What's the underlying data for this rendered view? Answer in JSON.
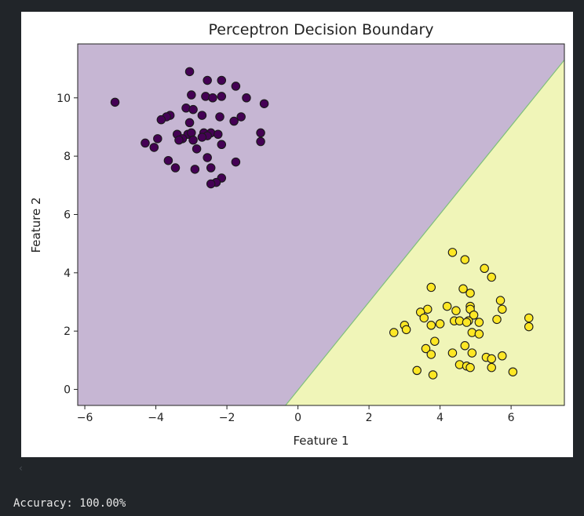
{
  "output": {
    "accuracy_text": "Accuracy: 100.00%",
    "scroll_hint": "‹"
  },
  "chart_data": {
    "type": "scatter",
    "title": "Perceptron Decision Boundary",
    "xlabel": "Feature 1",
    "ylabel": "Feature 2",
    "xlim": [
      -6.2,
      7.5
    ],
    "ylim": [
      -0.55,
      11.85
    ],
    "xticks": [
      -6,
      -4,
      -2,
      0,
      2,
      4,
      6
    ],
    "yticks": [
      0,
      2,
      4,
      6,
      8,
      10
    ],
    "xtick_labels": [
      "−6",
      "−4",
      "−2",
      "0",
      "2",
      "4",
      "6"
    ],
    "ytick_labels": [
      "0",
      "2",
      "4",
      "6",
      "8",
      "10"
    ],
    "decision_boundary": {
      "points": [
        [
          -0.35,
          -0.55
        ],
        [
          7.5,
          11.3
        ]
      ],
      "color": "#7fbf7b"
    },
    "regions": {
      "class0_color": "#c6b6d3",
      "class1_color": "#f0f5b8"
    },
    "series": [
      {
        "class": 0,
        "color": "#440154",
        "points": [
          [
            -5.15,
            9.85
          ],
          [
            -3.05,
            10.9
          ],
          [
            -2.55,
            10.6
          ],
          [
            -2.15,
            10.6
          ],
          [
            -1.75,
            10.4
          ],
          [
            -1.45,
            10.0
          ],
          [
            -3.0,
            10.1
          ],
          [
            -2.6,
            10.05
          ],
          [
            -2.4,
            10.0
          ],
          [
            -2.15,
            10.05
          ],
          [
            -0.95,
            9.8
          ],
          [
            -3.15,
            9.65
          ],
          [
            -2.95,
            9.6
          ],
          [
            -2.2,
            9.35
          ],
          [
            -2.7,
            9.4
          ],
          [
            -3.6,
            9.4
          ],
          [
            -3.7,
            9.35
          ],
          [
            -3.85,
            9.25
          ],
          [
            -3.05,
            9.15
          ],
          [
            -1.8,
            9.2
          ],
          [
            -1.6,
            9.35
          ],
          [
            -3.4,
            8.75
          ],
          [
            -3.1,
            8.75
          ],
          [
            -3.0,
            8.8
          ],
          [
            -3.25,
            8.6
          ],
          [
            -3.35,
            8.55
          ],
          [
            -2.95,
            8.55
          ],
          [
            -2.65,
            8.8
          ],
          [
            -2.45,
            8.8
          ],
          [
            -2.55,
            8.7
          ],
          [
            -2.7,
            8.65
          ],
          [
            -2.25,
            8.75
          ],
          [
            -2.15,
            8.4
          ],
          [
            -1.05,
            8.8
          ],
          [
            -1.05,
            8.5
          ],
          [
            -3.95,
            8.6
          ],
          [
            -4.05,
            8.3
          ],
          [
            -4.3,
            8.45
          ],
          [
            -2.85,
            8.25
          ],
          [
            -2.55,
            7.95
          ],
          [
            -3.65,
            7.85
          ],
          [
            -3.45,
            7.6
          ],
          [
            -2.9,
            7.55
          ],
          [
            -2.45,
            7.6
          ],
          [
            -1.75,
            7.8
          ],
          [
            -2.15,
            7.25
          ],
          [
            -2.3,
            7.1
          ],
          [
            -2.45,
            7.05
          ]
        ]
      },
      {
        "class": 1,
        "color": "#fde725",
        "points": [
          [
            4.35,
            4.7
          ],
          [
            4.7,
            4.45
          ],
          [
            5.25,
            4.15
          ],
          [
            5.45,
            3.85
          ],
          [
            3.75,
            3.5
          ],
          [
            4.65,
            3.45
          ],
          [
            4.85,
            3.3
          ],
          [
            5.7,
            3.05
          ],
          [
            4.2,
            2.85
          ],
          [
            4.85,
            2.85
          ],
          [
            3.65,
            2.75
          ],
          [
            4.45,
            2.7
          ],
          [
            4.85,
            2.75
          ],
          [
            5.75,
            2.75
          ],
          [
            3.45,
            2.65
          ],
          [
            4.95,
            2.55
          ],
          [
            3.55,
            2.45
          ],
          [
            4.4,
            2.35
          ],
          [
            4.55,
            2.35
          ],
          [
            4.8,
            2.35
          ],
          [
            5.6,
            2.4
          ],
          [
            6.5,
            2.45
          ],
          [
            4.75,
            2.3
          ],
          [
            5.1,
            2.3
          ],
          [
            4.0,
            2.25
          ],
          [
            3.75,
            2.2
          ],
          [
            3.0,
            2.2
          ],
          [
            6.5,
            2.15
          ],
          [
            3.05,
            2.05
          ],
          [
            2.7,
            1.95
          ],
          [
            4.9,
            1.95
          ],
          [
            5.1,
            1.9
          ],
          [
            3.85,
            1.65
          ],
          [
            4.7,
            1.5
          ],
          [
            3.6,
            1.4
          ],
          [
            4.9,
            1.25
          ],
          [
            4.35,
            1.25
          ],
          [
            3.75,
            1.2
          ],
          [
            5.75,
            1.15
          ],
          [
            5.3,
            1.1
          ],
          [
            5.45,
            1.05
          ],
          [
            4.55,
            0.85
          ],
          [
            4.75,
            0.8
          ],
          [
            4.85,
            0.75
          ],
          [
            5.45,
            0.75
          ],
          [
            3.35,
            0.65
          ],
          [
            6.05,
            0.6
          ],
          [
            3.8,
            0.5
          ]
        ]
      }
    ]
  }
}
